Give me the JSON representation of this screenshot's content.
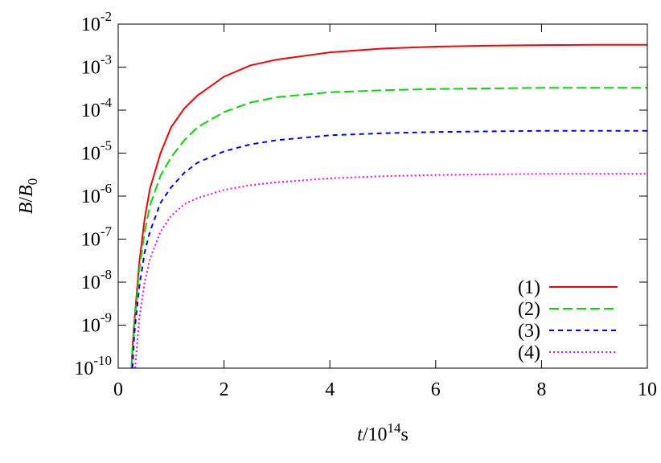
{
  "chart_data": {
    "type": "line",
    "log_y": true,
    "x_label": [
      "t",
      "/10",
      "14",
      "s"
    ],
    "y_label": [
      "B",
      "/",
      "B",
      "0"
    ],
    "x": [
      0.25,
      0.27,
      0.3,
      0.32,
      0.4,
      0.5,
      0.6,
      0.8,
      1,
      1.25,
      1.5,
      2,
      2.5,
      3,
      4,
      5,
      6,
      7,
      8,
      9,
      10
    ],
    "series": [
      {
        "name": "(1)",
        "color": "#ff0000",
        "dash": "solid",
        "values": [
          1e-10,
          3e-10,
          1e-09,
          2e-09,
          3e-08,
          3e-07,
          1.5e-06,
          1e-05,
          4e-05,
          0.00011,
          0.00022,
          0.0006,
          0.0011,
          0.0015,
          0.0022,
          0.0027,
          0.003,
          0.00315,
          0.00325,
          0.0033,
          0.0033
        ]
      },
      {
        "name": "(2)",
        "color": "#00dd00",
        "dash": "dashed",
        "values": [
          1e-10,
          2.5e-10,
          8e-10,
          1.6e-09,
          2e-08,
          1.5e-07,
          6e-07,
          3e-06,
          8e-06,
          2e-05,
          4e-05,
          9e-05,
          0.00015,
          0.0002,
          0.00026,
          0.00029,
          0.00031,
          0.00032,
          0.00033,
          0.00033,
          0.00033
        ]
      },
      {
        "name": "(3)",
        "color": "#0000ff",
        "dash": "short-dashed",
        "values": [
          null,
          1e-10,
          5e-10,
          1e-09,
          8e-09,
          5e-08,
          1.5e-07,
          7e-07,
          1.6e-06,
          3.5e-06,
          6e-06,
          1.1e-05,
          1.6e-05,
          2e-05,
          2.6e-05,
          2.9e-05,
          3.1e-05,
          3.2e-05,
          3.3e-05,
          3.3e-05,
          3.3e-05
        ]
      },
      {
        "name": "(4)",
        "color": "#ff00ff",
        "dash": "dotted",
        "values": [
          null,
          null,
          null,
          1e-10,
          1.5e-09,
          1e-08,
          3.5e-08,
          1.5e-07,
          3.5e-07,
          6.5e-07,
          9e-07,
          1.4e-06,
          1.8e-06,
          2.1e-06,
          2.6e-06,
          2.9e-06,
          3.1e-06,
          3.2e-06,
          3.3e-06,
          3.3e-06,
          3.3e-06
        ]
      }
    ],
    "xlim": [
      0,
      10
    ],
    "xticks": [
      0,
      2,
      4,
      6,
      8,
      10
    ],
    "ylim": [
      1e-10,
      0.01
    ],
    "yticks": [
      {
        "value": 1e-10,
        "label": "10",
        "sup": "-10"
      },
      {
        "value": 1e-09,
        "label": "10",
        "sup": "-9"
      },
      {
        "value": 1e-08,
        "label": "10",
        "sup": "-8"
      },
      {
        "value": 1e-07,
        "label": "10",
        "sup": "-7"
      },
      {
        "value": 1e-06,
        "label": "10",
        "sup": "-6"
      },
      {
        "value": 1e-05,
        "label": "10",
        "sup": "-5"
      },
      {
        "value": 0.0001,
        "label": "10",
        "sup": "-4"
      },
      {
        "value": 0.001,
        "label": "10",
        "sup": "-3"
      },
      {
        "value": 0.01,
        "label": "10",
        "sup": "-2"
      }
    ],
    "grid": false,
    "legend": "lower-right"
  }
}
